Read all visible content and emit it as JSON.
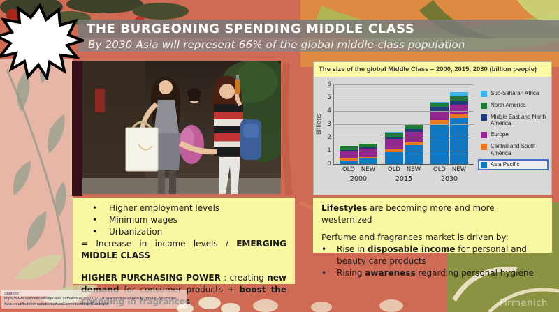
{
  "slide": {
    "title": "THE BURGEONING SPENDING MIDDLE CLASS",
    "subtitle": "By 2030 Asia will represent 66% of the global middle-class population",
    "watermark": "Firmenich",
    "sources_label": "Sources:",
    "source_lines": [
      "https://www.cosmeticsdesign-asia.com/Article/2017/07/11/The-evolution-of-beauty-retail-in-Southeast-",
      "Asia.co.uk/hub/in/marketdata/AsiaCosmeticsMarketGuide.pdf"
    ]
  },
  "left_box": {
    "bullets": [
      "Higher employment levels",
      "Minimum wages",
      "Urbanization"
    ],
    "equals_line": [
      {
        "t": "=  Increase  in  income  levels  /  "
      },
      {
        "t": "EMERGING MIDDLE CLASS",
        "b": true
      }
    ],
    "power_line": [
      {
        "t": "HIGHER PURCHASING POWER",
        "b": true
      },
      {
        "t": " : creating "
      },
      {
        "t": "new demand",
        "b": true
      },
      {
        "t": " for consumer products + "
      },
      {
        "t": "boost the spending in fragrances",
        "b": true
      }
    ]
  },
  "right_box": {
    "line1": [
      {
        "t": "Lifestyles",
        "b": true
      },
      {
        "t": " are becoming more and more  westernized"
      }
    ],
    "line2": "Perfume and fragrances market is driven by:",
    "bullets": [
      [
        {
          "t": "Rise in "
        },
        {
          "t": "disposable income",
          "b": true
        },
        {
          "t": " for personal and beauty care products"
        }
      ],
      [
        {
          "t": "Rising "
        },
        {
          "t": "awareness",
          "b": true
        },
        {
          "t": " regarding personal hygiene"
        }
      ]
    ]
  },
  "chart_data": {
    "type": "bar",
    "stacked": true,
    "title": "The size of the global Middle Class – 2000, 2015, 2030 (billion people)",
    "ylabel": "Billions",
    "ylim": [
      0,
      6
    ],
    "yticks": [
      0,
      1,
      2,
      3,
      4,
      5,
      6
    ],
    "grid": true,
    "group_years": [
      "2000",
      "2015",
      "2030"
    ],
    "categories": [
      "OLD",
      "NEW",
      "OLD",
      "NEW",
      "OLD",
      "NEW"
    ],
    "series": [
      {
        "name": "Asia Pacific",
        "color": "#1177c0",
        "highlight": true,
        "values": [
          0.25,
          0.4,
          0.9,
          1.4,
          3.0,
          3.5
        ]
      },
      {
        "name": "Central and South America",
        "color": "#e87722",
        "values": [
          0.15,
          0.15,
          0.2,
          0.25,
          0.3,
          0.3
        ]
      },
      {
        "name": "Europe",
        "color": "#92278f",
        "values": [
          0.55,
          0.6,
          0.8,
          0.75,
          0.7,
          0.65
        ]
      },
      {
        "name": "Middle East and North America",
        "color": "#1f3d7c",
        "values": [
          0.1,
          0.1,
          0.15,
          0.25,
          0.3,
          0.35
        ]
      },
      {
        "name": "North America",
        "color": "#1e7b34",
        "values": [
          0.3,
          0.3,
          0.3,
          0.3,
          0.35,
          0.3
        ]
      },
      {
        "name": "Sub-Saharan Africa",
        "color": "#3fb6e8",
        "values": [
          0,
          0,
          0.05,
          0.05,
          0.05,
          0.3
        ]
      }
    ],
    "legend_order": [
      "Sub-Saharan Africa",
      "North America",
      "Middle East and North America",
      "Europe",
      "Central and South America",
      "Asia Pacific"
    ],
    "legend_position": "right"
  }
}
